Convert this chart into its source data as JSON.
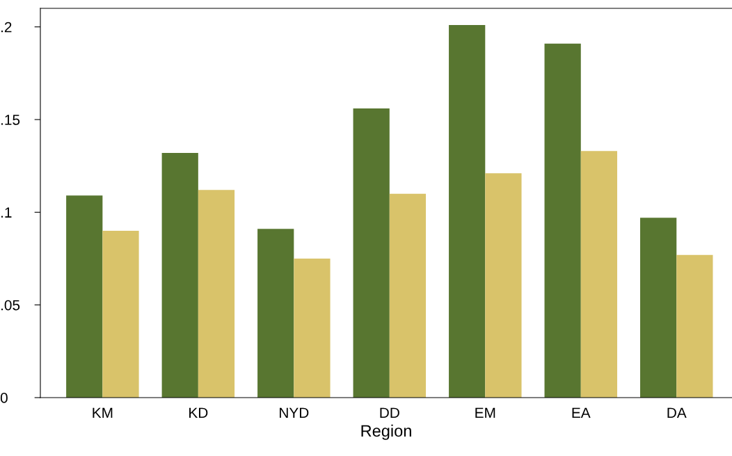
{
  "chart_data": {
    "type": "bar",
    "xlabel": "Region",
    "categories": [
      "KM",
      "KD",
      "NYD",
      "DD",
      "EM",
      "EA",
      "DA"
    ],
    "series": [
      {
        "color": "#587630",
        "values": [
          0.109,
          0.132,
          0.091,
          0.156,
          0.201,
          0.191,
          0.097
        ]
      },
      {
        "color": "#d9c36a",
        "values": [
          0.09,
          0.112,
          0.075,
          0.11,
          0.121,
          0.133,
          0.077
        ]
      }
    ],
    "ylim": [
      0,
      0.21
    ],
    "yticks": [
      0,
      {
        "value": 0.05,
        "label": ".05"
      },
      {
        "value": 0.1,
        "label": ".1"
      },
      {
        "value": 0.15,
        "label": ".15"
      },
      {
        "value": 0.2,
        "label": ".2"
      }
    ],
    "grid": false,
    "legend": false
  }
}
